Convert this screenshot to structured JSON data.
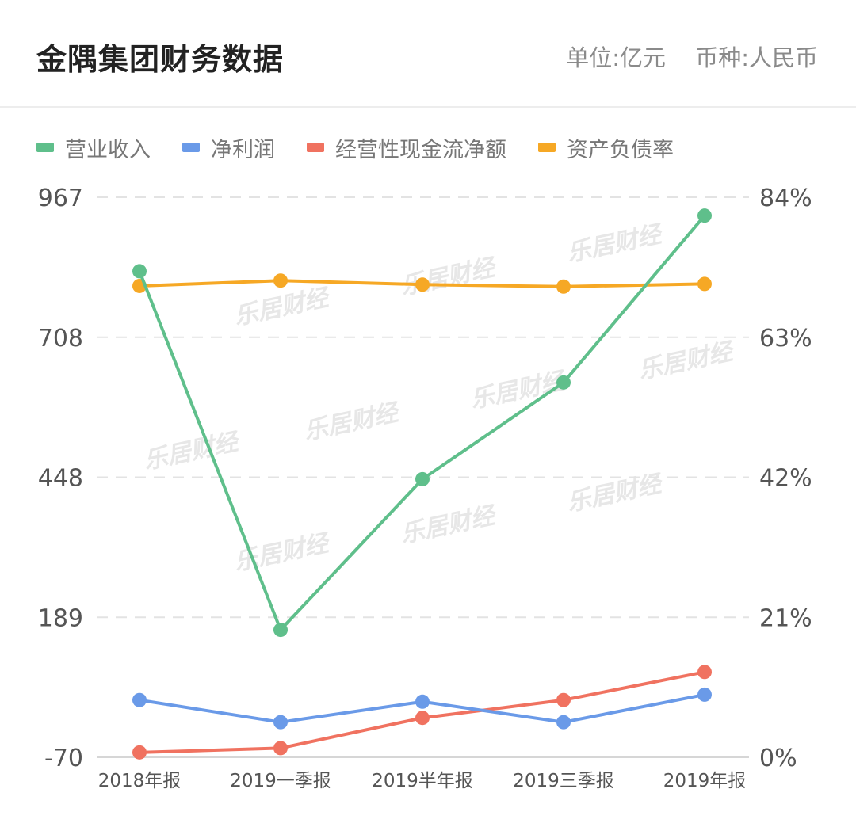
{
  "header": {
    "title": "金隅集团财务数据",
    "unit": "单位:亿元",
    "currency": "币种:人民币"
  },
  "watermark": "乐居财经",
  "colors": {
    "revenue": "#5fbf8b",
    "net_profit": "#6a9ae8",
    "cash_flow": "#f07260",
    "debt_ratio": "#f6a825",
    "grid": "#e3e3e3",
    "axis_text": "#555555"
  },
  "chart_data": {
    "type": "line",
    "categories": [
      "2018年报",
      "2019一季报",
      "2019半年报",
      "2019三季报",
      "2019年报"
    ],
    "left_axis": {
      "ticks": [
        "967",
        "708",
        "448",
        "189",
        "-70"
      ],
      "ylim": [
        -70,
        967
      ]
    },
    "right_axis": {
      "ticks": [
        "84%",
        "63%",
        "42%",
        "21%",
        "0%"
      ],
      "ylim": [
        0,
        84
      ]
    },
    "grid": "dashed horizontal",
    "legend_position": "top-left",
    "series": [
      {
        "name": "营业收入",
        "axis": "left",
        "color": "#5fbf8b",
        "values": [
          830,
          166,
          445,
          624,
          933
        ]
      },
      {
        "name": "净利润",
        "axis": "left",
        "color": "#6a9ae8",
        "values": [
          36,
          -5,
          33,
          -5,
          46
        ]
      },
      {
        "name": "经营性现金流净额",
        "axis": "left",
        "color": "#f07260",
        "values": [
          -61,
          -53,
          3,
          36,
          88
        ]
      },
      {
        "name": "资产负债率",
        "axis": "right",
        "color": "#f6a825",
        "values": [
          70.7,
          71.5,
          70.9,
          70.6,
          71.0
        ]
      }
    ]
  }
}
